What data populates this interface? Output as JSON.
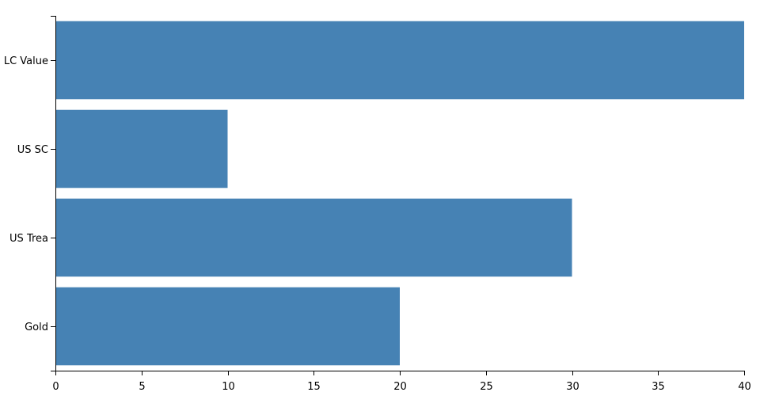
{
  "chart_data": {
    "type": "bar",
    "orientation": "horizontal",
    "categories": [
      "LC Value",
      "US SC",
      "US Trea",
      "Gold"
    ],
    "values": [
      40,
      10,
      30,
      20
    ],
    "color": "#4682b4",
    "xlim": [
      0,
      40
    ],
    "xticks": [
      0,
      5,
      10,
      15,
      20,
      25,
      30,
      35,
      40
    ]
  }
}
